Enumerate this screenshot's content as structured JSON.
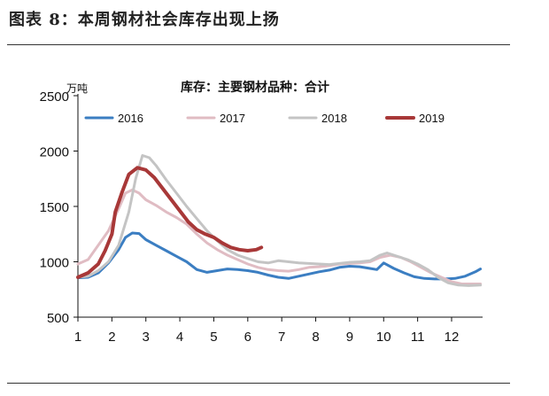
{
  "figure_title": "图表 8：本周钢材社会库存出现上扬",
  "chart_data": {
    "type": "line",
    "title": "库存：主要钢材品种：合计",
    "unit": "万吨",
    "xlabel": "",
    "ylabel": "",
    "x_ticks": [
      "1",
      "2",
      "3",
      "4",
      "5",
      "6",
      "7",
      "8",
      "9",
      "10",
      "11",
      "12"
    ],
    "y_ticks": [
      "500",
      "1000",
      "1500",
      "2000",
      "2500"
    ],
    "xlim": [
      1,
      12.9
    ],
    "ylim": [
      500,
      2500
    ],
    "grid": false,
    "legend_position": "top",
    "series": [
      {
        "name": "2016",
        "color": "#3b7ec2",
        "width": 3,
        "points": [
          [
            1,
            855
          ],
          [
            1.3,
            860
          ],
          [
            1.6,
            900
          ],
          [
            1.9,
            990
          ],
          [
            2.2,
            1110
          ],
          [
            2.4,
            1220
          ],
          [
            2.6,
            1260
          ],
          [
            2.8,
            1255
          ],
          [
            3.0,
            1200
          ],
          [
            3.3,
            1150
          ],
          [
            3.6,
            1100
          ],
          [
            3.9,
            1050
          ],
          [
            4.2,
            1000
          ],
          [
            4.5,
            930
          ],
          [
            4.8,
            905
          ],
          [
            5.1,
            920
          ],
          [
            5.4,
            935
          ],
          [
            5.7,
            930
          ],
          [
            6.0,
            920
          ],
          [
            6.3,
            905
          ],
          [
            6.6,
            880
          ],
          [
            6.9,
            860
          ],
          [
            7.2,
            850
          ],
          [
            7.5,
            870
          ],
          [
            7.8,
            890
          ],
          [
            8.1,
            910
          ],
          [
            8.4,
            925
          ],
          [
            8.7,
            950
          ],
          [
            9.0,
            960
          ],
          [
            9.3,
            955
          ],
          [
            9.6,
            940
          ],
          [
            9.8,
            930
          ],
          [
            10.0,
            990
          ],
          [
            10.3,
            940
          ],
          [
            10.6,
            900
          ],
          [
            10.9,
            865
          ],
          [
            11.2,
            850
          ],
          [
            11.5,
            845
          ],
          [
            11.8,
            845
          ],
          [
            12.1,
            850
          ],
          [
            12.4,
            870
          ],
          [
            12.7,
            910
          ],
          [
            12.85,
            935
          ]
        ]
      },
      {
        "name": "2017",
        "color": "#e0bcc3",
        "width": 3,
        "points": [
          [
            1,
            980
          ],
          [
            1.3,
            1020
          ],
          [
            1.6,
            1150
          ],
          [
            1.9,
            1280
          ],
          [
            2.2,
            1480
          ],
          [
            2.4,
            1620
          ],
          [
            2.6,
            1650
          ],
          [
            2.8,
            1620
          ],
          [
            3.0,
            1560
          ],
          [
            3.3,
            1510
          ],
          [
            3.6,
            1450
          ],
          [
            3.9,
            1400
          ],
          [
            4.2,
            1340
          ],
          [
            4.5,
            1250
          ],
          [
            4.8,
            1170
          ],
          [
            5.1,
            1110
          ],
          [
            5.4,
            1060
          ],
          [
            5.7,
            1020
          ],
          [
            6.0,
            980
          ],
          [
            6.3,
            950
          ],
          [
            6.6,
            930
          ],
          [
            6.9,
            920
          ],
          [
            7.2,
            915
          ],
          [
            7.5,
            930
          ],
          [
            7.8,
            950
          ],
          [
            8.1,
            955
          ],
          [
            8.4,
            965
          ],
          [
            8.7,
            980
          ],
          [
            9.0,
            985
          ],
          [
            9.3,
            990
          ],
          [
            9.6,
            1000
          ],
          [
            9.9,
            1040
          ],
          [
            10.2,
            1060
          ],
          [
            10.5,
            1040
          ],
          [
            10.8,
            1000
          ],
          [
            11.1,
            950
          ],
          [
            11.4,
            900
          ],
          [
            11.7,
            860
          ],
          [
            12.0,
            820
          ],
          [
            12.3,
            800
          ],
          [
            12.6,
            800
          ],
          [
            12.85,
            800
          ]
        ]
      },
      {
        "name": "2018",
        "color": "#c4c4c4",
        "width": 3,
        "points": [
          [
            1,
            860
          ],
          [
            1.3,
            870
          ],
          [
            1.6,
            920
          ],
          [
            1.9,
            1000
          ],
          [
            2.2,
            1150
          ],
          [
            2.5,
            1450
          ],
          [
            2.7,
            1750
          ],
          [
            2.9,
            1960
          ],
          [
            3.1,
            1940
          ],
          [
            3.3,
            1870
          ],
          [
            3.6,
            1740
          ],
          [
            3.9,
            1620
          ],
          [
            4.2,
            1500
          ],
          [
            4.5,
            1390
          ],
          [
            4.8,
            1280
          ],
          [
            5.1,
            1190
          ],
          [
            5.4,
            1110
          ],
          [
            5.7,
            1060
          ],
          [
            6.0,
            1030
          ],
          [
            6.3,
            1000
          ],
          [
            6.6,
            990
          ],
          [
            6.9,
            1010
          ],
          [
            7.2,
            1000
          ],
          [
            7.5,
            990
          ],
          [
            7.8,
            985
          ],
          [
            8.1,
            980
          ],
          [
            8.4,
            975
          ],
          [
            8.7,
            985
          ],
          [
            9.0,
            995
          ],
          [
            9.3,
            1000
          ],
          [
            9.6,
            1010
          ],
          [
            9.9,
            1060
          ],
          [
            10.1,
            1080
          ],
          [
            10.4,
            1050
          ],
          [
            10.7,
            1020
          ],
          [
            11.0,
            980
          ],
          [
            11.3,
            930
          ],
          [
            11.6,
            860
          ],
          [
            11.9,
            810
          ],
          [
            12.2,
            790
          ],
          [
            12.5,
            785
          ],
          [
            12.85,
            790
          ]
        ]
      },
      {
        "name": "2019",
        "color": "#a83838",
        "width": 4,
        "points": [
          [
            1,
            860
          ],
          [
            1.3,
            900
          ],
          [
            1.6,
            980
          ],
          [
            1.8,
            1100
          ],
          [
            2.0,
            1250
          ],
          [
            2.1,
            1450
          ],
          [
            2.3,
            1630
          ],
          [
            2.5,
            1790
          ],
          [
            2.75,
            1850
          ],
          [
            3.0,
            1830
          ],
          [
            3.25,
            1760
          ],
          [
            3.5,
            1660
          ],
          [
            3.75,
            1560
          ],
          [
            4.0,
            1460
          ],
          [
            4.25,
            1360
          ],
          [
            4.5,
            1290
          ],
          [
            4.75,
            1250
          ],
          [
            5.0,
            1220
          ],
          [
            5.25,
            1170
          ],
          [
            5.5,
            1130
          ],
          [
            5.75,
            1110
          ],
          [
            6.0,
            1100
          ],
          [
            6.25,
            1110
          ],
          [
            6.4,
            1130
          ]
        ]
      }
    ]
  }
}
